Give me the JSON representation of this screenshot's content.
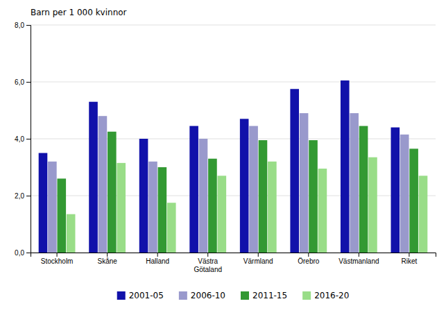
{
  "chart_data": {
    "type": "bar",
    "ylabel": "Barn per 1 000 kvinnor",
    "categories": [
      "Stockholm",
      "Skåne",
      "Halland",
      "Västra\nGötaland",
      "Värmland",
      "Örebro",
      "Västmanland",
      "Riket"
    ],
    "series": [
      {
        "name": "2001-05",
        "color": "#1111aa",
        "values": [
          3.5,
          5.3,
          4.0,
          4.45,
          4.7,
          5.75,
          6.05,
          4.4
        ]
      },
      {
        "name": "2006-10",
        "color": "#9999cc",
        "values": [
          3.2,
          4.8,
          3.2,
          4.0,
          4.45,
          4.9,
          4.9,
          4.15
        ]
      },
      {
        "name": "2011-15",
        "color": "#339933",
        "values": [
          2.6,
          4.25,
          3.0,
          3.3,
          3.95,
          3.95,
          4.45,
          3.65
        ]
      },
      {
        "name": "2016-20",
        "color": "#99dd88",
        "values": [
          1.35,
          3.15,
          1.75,
          2.7,
          3.2,
          2.95,
          3.35,
          2.7
        ]
      }
    ],
    "ylim": [
      0,
      8.0
    ],
    "yticks": [
      {
        "value": 0.0,
        "label": "0,0"
      },
      {
        "value": 2.0,
        "label": "2,0"
      },
      {
        "value": 4.0,
        "label": "4,0"
      },
      {
        "value": 6.0,
        "label": "6,0"
      },
      {
        "value": 8.0,
        "label": "8,0"
      }
    ],
    "grid": true,
    "legend": "bottom"
  }
}
